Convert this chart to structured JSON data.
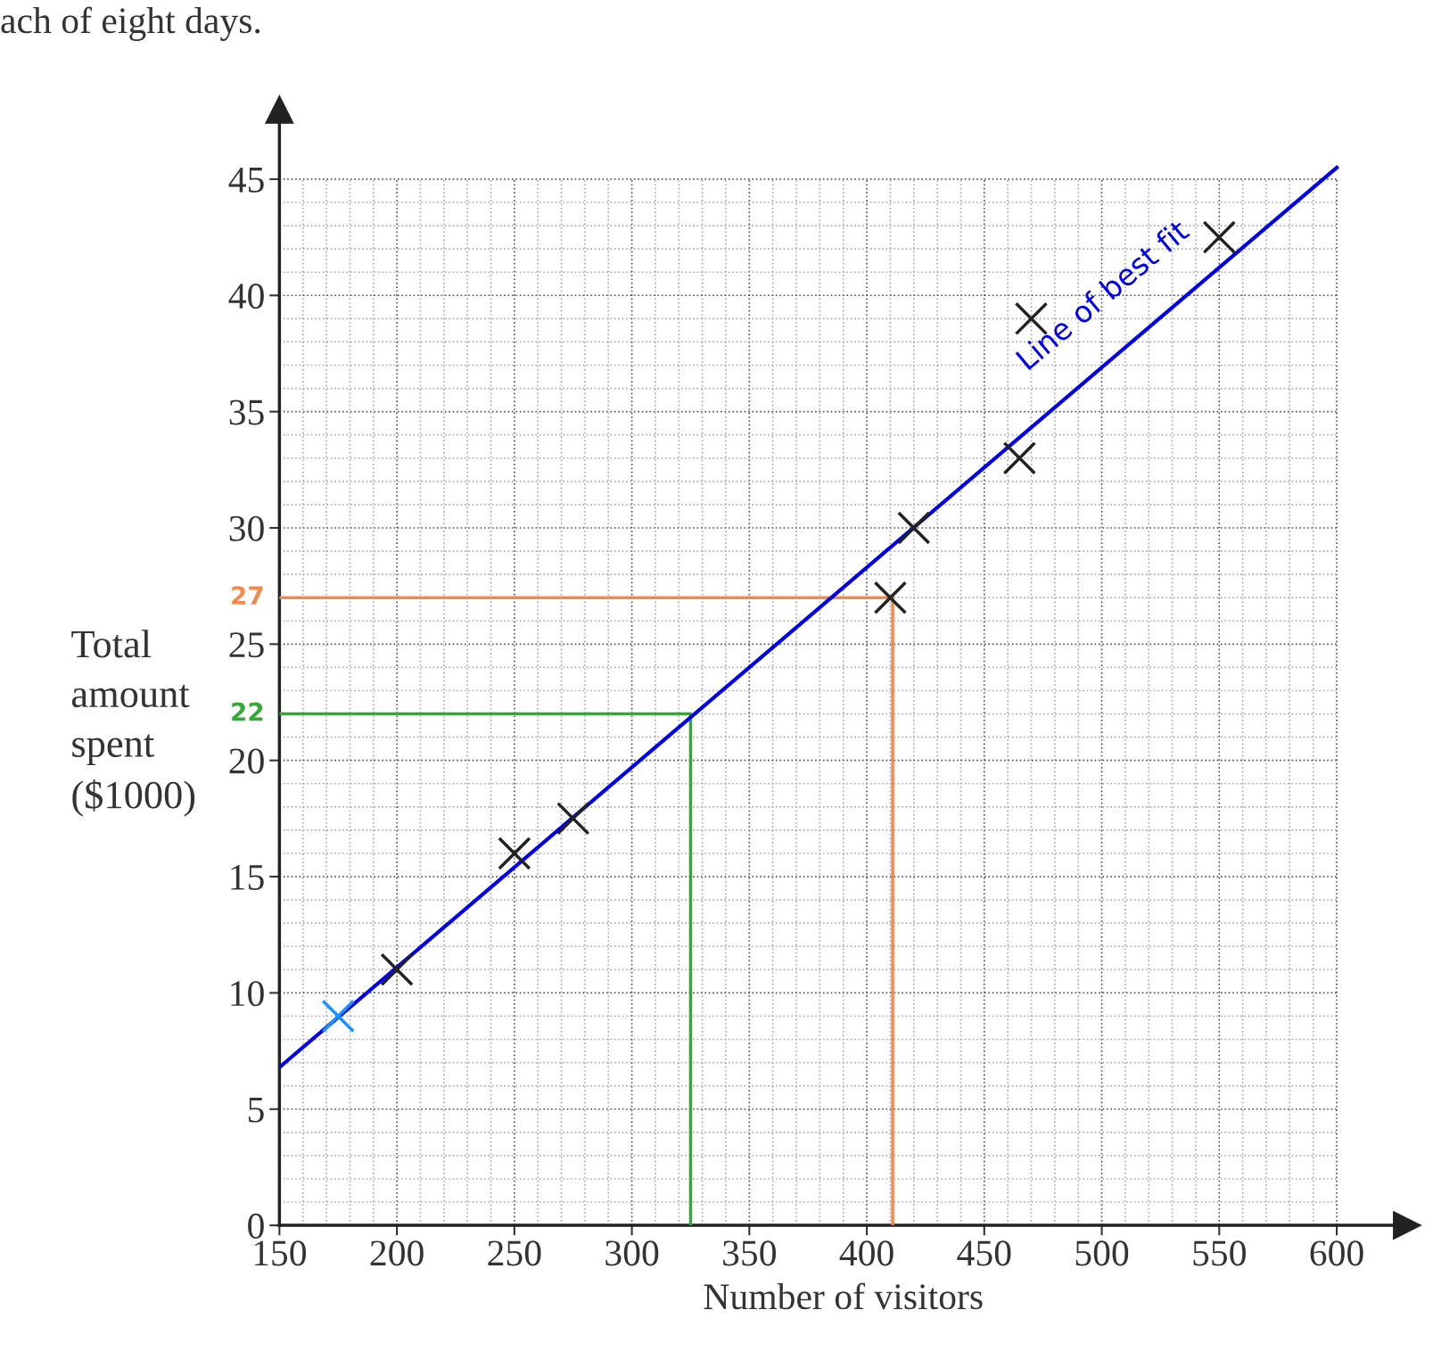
{
  "chart_data": {
    "type": "scatter",
    "xlabel": "Number of visitors",
    "ylabel": "Total\namount\nspent\n($1000)",
    "xlim": [
      150,
      630
    ],
    "ylim": [
      0,
      48
    ],
    "xticks": [
      150,
      200,
      250,
      300,
      350,
      400,
      450,
      500,
      550,
      600
    ],
    "yticks": [
      0,
      5,
      10,
      15,
      20,
      25,
      30,
      35,
      40,
      45
    ],
    "grid": true,
    "marker": "cross",
    "series": [
      {
        "color": "#222222",
        "x": [
          200,
          250,
          275,
          410,
          420,
          465,
          470,
          550
        ],
        "values": [
          11,
          16,
          17.5,
          27,
          30,
          33,
          39,
          42.5
        ]
      },
      {
        "color": "#1e90ff",
        "x": [
          175
        ],
        "values": [
          9
        ]
      },
      {
        "type": "line",
        "marker": "none",
        "color": "#0000ee",
        "x": [
          150,
          600
        ],
        "values": [
          6.8,
          45.5
        ]
      },
      {
        "type": "line",
        "marker": "none",
        "color": "#33aa33",
        "x": [
          150,
          325,
          325
        ],
        "values": [
          22,
          22,
          0
        ]
      },
      {
        "type": "line",
        "marker": "none",
        "color": "#f4894f",
        "x": [
          150,
          411,
          411
        ],
        "values": [
          27,
          27,
          0
        ]
      }
    ],
    "annotations": [
      "ach of eight days.",
      "Line of best fit",
      {
        "text": "27",
        "x": 150,
        "y": 27
      },
      {
        "text": "22",
        "x": 150,
        "y": 22
      }
    ]
  }
}
